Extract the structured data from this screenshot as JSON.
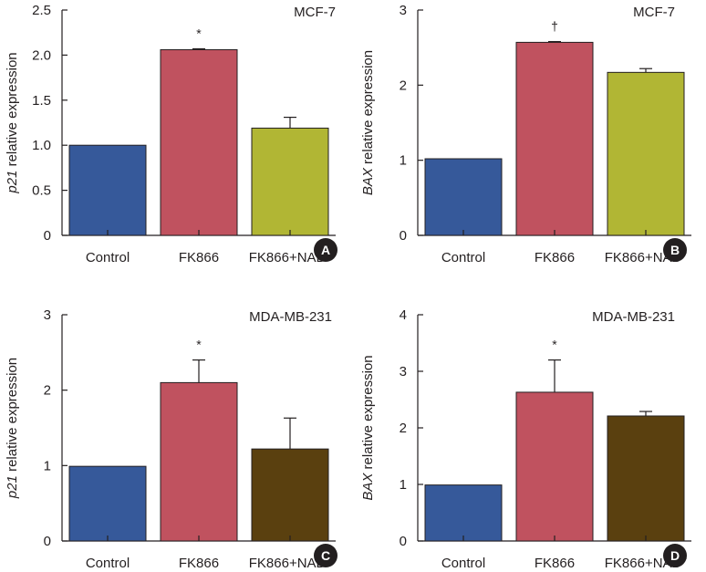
{
  "colors": {
    "control": "#36599a",
    "fk866": "#c0525f",
    "nad_yellow": "#b1b634",
    "nad_brown": "#5a400f",
    "axis": "#231f20",
    "badge": "#231f20"
  },
  "chart_data": [
    {
      "type": "bar",
      "panel_label": "A",
      "title": "MCF-7",
      "ylabel_prefix": "p21",
      "ylabel_suffix": " relative expression",
      "categories": [
        "Control",
        "FK866",
        "FK866+NAD"
      ],
      "category_superscripts": [
        "",
        "",
        "+"
      ],
      "values": [
        1.0,
        2.06,
        1.19
      ],
      "errors": [
        0,
        0.01,
        0.12
      ],
      "annotations": [
        "",
        "*",
        ""
      ],
      "bar_colors": [
        "control",
        "fk866",
        "nad_yellow"
      ],
      "ylim": [
        0,
        2.5
      ],
      "yticks": [
        0,
        0.5,
        1.0,
        1.5,
        2.0,
        2.5
      ],
      "ytick_labels": [
        "0",
        "0.5",
        "1.0",
        "1.5",
        "2.0",
        "2.5"
      ]
    },
    {
      "type": "bar",
      "panel_label": "B",
      "title": "MCF-7",
      "ylabel_prefix": "BAX",
      "ylabel_suffix": " relative expression",
      "categories": [
        "Control",
        "FK866",
        "FK866+NAD"
      ],
      "category_superscripts": [
        "",
        "",
        "+"
      ],
      "values": [
        1.02,
        2.57,
        2.17
      ],
      "errors": [
        0,
        0.01,
        0.05
      ],
      "annotations": [
        "",
        "†",
        ""
      ],
      "bar_colors": [
        "control",
        "fk866",
        "nad_yellow"
      ],
      "ylim": [
        0,
        3
      ],
      "yticks": [
        0,
        1,
        2,
        3
      ],
      "ytick_labels": [
        "0",
        "1",
        "2",
        "3"
      ]
    },
    {
      "type": "bar",
      "panel_label": "C",
      "title": "MDA-MB-231",
      "ylabel_prefix": "p21",
      "ylabel_suffix": " relative expression",
      "categories": [
        "Control",
        "FK866",
        "FK866+NAD"
      ],
      "category_superscripts": [
        "",
        "",
        "+"
      ],
      "values": [
        0.99,
        2.1,
        1.22
      ],
      "errors": [
        0,
        0.3,
        0.41
      ],
      "annotations": [
        "",
        "*",
        ""
      ],
      "bar_colors": [
        "control",
        "fk866",
        "nad_brown"
      ],
      "ylim": [
        0,
        3
      ],
      "yticks": [
        0,
        1,
        2,
        3
      ],
      "ytick_labels": [
        "0",
        "1",
        "2",
        "3"
      ]
    },
    {
      "type": "bar",
      "panel_label": "D",
      "title": "MDA-MB-231",
      "ylabel_prefix": "BAX",
      "ylabel_suffix": " relative expression",
      "categories": [
        "Control",
        "FK866",
        "FK866+NAD"
      ],
      "category_superscripts": [
        "",
        "",
        "+"
      ],
      "values": [
        0.99,
        2.63,
        2.21
      ],
      "errors": [
        0,
        0.57,
        0.08
      ],
      "annotations": [
        "",
        "*",
        ""
      ],
      "bar_colors": [
        "control",
        "fk866",
        "nad_brown"
      ],
      "ylim": [
        0,
        4
      ],
      "yticks": [
        0,
        1,
        2,
        3,
        4
      ],
      "ytick_labels": [
        "0",
        "1",
        "2",
        "3",
        "4"
      ]
    }
  ]
}
